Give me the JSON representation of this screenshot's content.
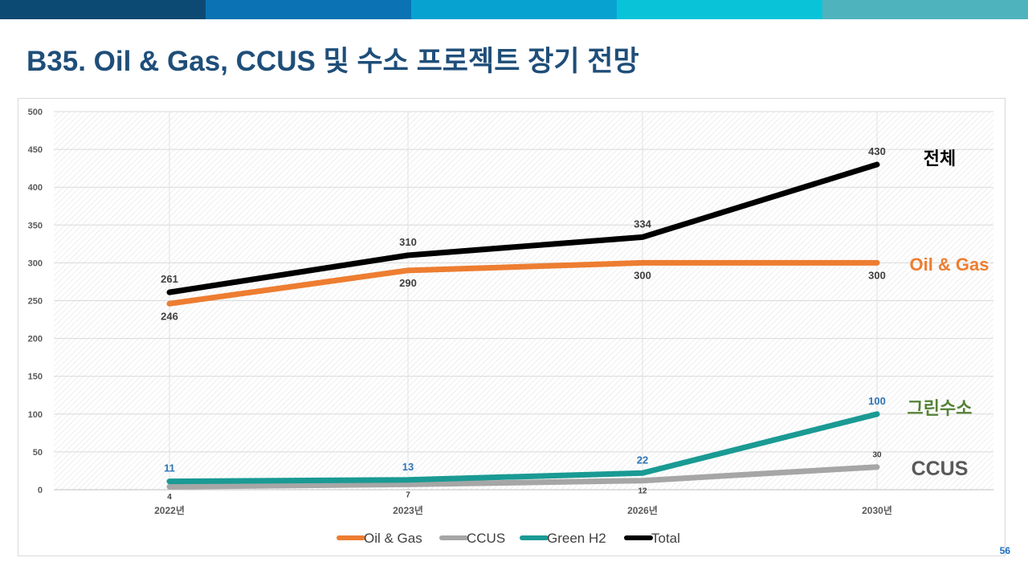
{
  "header": {
    "title": "B35. Oil & Gas, CCUS 및 수소 프로젝트 장기 전망",
    "band_colors": [
      "#0d4a73",
      "#0b72b3",
      "#08a2d1",
      "#09c4d9",
      "#4fb3bd"
    ]
  },
  "page_number": "56",
  "chart_data": {
    "type": "line",
    "categories": [
      "2022년",
      "2023년",
      "2026년",
      "2030년"
    ],
    "ylim": [
      0,
      500
    ],
    "yticks": [
      0,
      50,
      100,
      150,
      200,
      250,
      300,
      350,
      400,
      450,
      500
    ],
    "grid": true,
    "legend_position": "bottom",
    "series": [
      {
        "name": "Oil & Gas",
        "values": [
          246,
          290,
          300,
          300
        ],
        "color": "#ed7d31",
        "label_color": "#404040",
        "label_pos": "below"
      },
      {
        "name": "CCUS",
        "values": [
          4,
          7,
          12,
          30
        ],
        "color": "#a6a6a6",
        "label_color": "#404040",
        "label_pos": "below_last_above"
      },
      {
        "name": "Green H2",
        "values": [
          11,
          13,
          22,
          100
        ],
        "color": "#1a9a94",
        "label_color": "#2e75b6",
        "label_pos": "above"
      },
      {
        "name": "Total",
        "values": [
          261,
          310,
          334,
          430
        ],
        "color": "#000000",
        "label_color": "#404040",
        "label_pos": "above"
      }
    ],
    "annotations": [
      {
        "text": "전체",
        "series": "Total",
        "color": "#000000"
      },
      {
        "text": "Oil & Gas",
        "series": "Oil & Gas",
        "color": "#ed7d31"
      },
      {
        "text": "그린수소",
        "series": "Green H2",
        "color": "#548235"
      },
      {
        "text": "CCUS",
        "series": "CCUS",
        "color": "#595959"
      }
    ]
  }
}
